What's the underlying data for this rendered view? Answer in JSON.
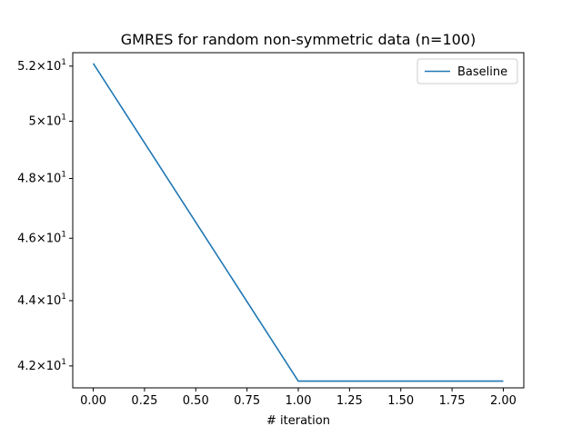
{
  "chart_data": {
    "type": "line",
    "title": "GMRES for random non-symmetric data (n=100)",
    "xlabel": "# iteration",
    "ylabel": "",
    "x_scale": "linear",
    "y_scale": "log",
    "xlim": [
      -0.1,
      2.1
    ],
    "ylim": [
      41.35,
      52.5
    ],
    "x_ticks": [
      0,
      0.25,
      0.5,
      0.75,
      1.0,
      1.25,
      1.5,
      1.75,
      2.0
    ],
    "x_tick_labels": [
      "0.00",
      "0.25",
      "0.50",
      "0.75",
      "1.00",
      "1.25",
      "1.50",
      "1.75",
      "2.00"
    ],
    "y_ticks": [
      42,
      44,
      46,
      48,
      50,
      52
    ],
    "y_tick_labels": [
      {
        "mantissa": "4.2",
        "base": "10",
        "exp": "1"
      },
      {
        "mantissa": "4.4",
        "base": "10",
        "exp": "1"
      },
      {
        "mantissa": "4.6",
        "base": "10",
        "exp": "1"
      },
      {
        "mantissa": "4.8",
        "base": "10",
        "exp": "1"
      },
      {
        "mantissa": "5",
        "base": "10",
        "exp": "1"
      },
      {
        "mantissa": "5.2",
        "base": "10",
        "exp": "1"
      }
    ],
    "grid": false,
    "legend_position": "top-right",
    "series": [
      {
        "name": "Baseline",
        "color": "#1f77b4",
        "x": [
          0,
          1,
          2
        ],
        "y": [
          52.1,
          41.55,
          41.55
        ]
      }
    ]
  }
}
